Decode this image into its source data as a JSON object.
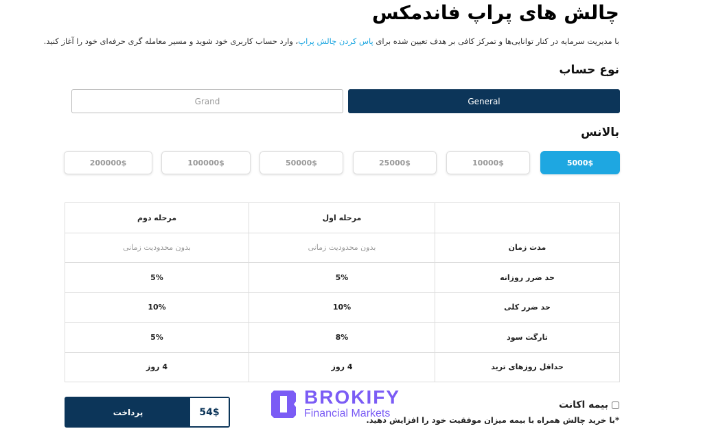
{
  "title": "چالش های پراپ فاندمکس",
  "intro": {
    "before": "با مدیریت سرمایه در کنار توانایی‌ها و تمرکز کافی بر هدف تعیین شده برای ",
    "link": "پاس کردن چالش پراپ",
    "after": "، وارد حساب کاربری خود شوید و مسیر معامله گری حرفه‌ای خود را آغاز کنید."
  },
  "account_type": {
    "label": "نوع حساب",
    "options": [
      "General",
      "Grand"
    ],
    "selected": "General"
  },
  "balance": {
    "label": "بالانس",
    "options": [
      "5000$",
      "10000$",
      "25000$",
      "50000$",
      "100000$",
      "200000$"
    ],
    "selected": "5000$"
  },
  "table": {
    "headers": [
      "",
      "مرحله اول",
      "مرحله دوم"
    ],
    "rows": [
      [
        "مدت زمان",
        "بدون محدودیت زمانی",
        "بدون محدودیت زمانی"
      ],
      [
        "حد ضرر روزانه",
        "5%",
        "5%"
      ],
      [
        "حد ضرر کلی",
        "10%",
        "10%"
      ],
      [
        "تارگت سود",
        "8%",
        "5%"
      ],
      [
        "حداقل روزهای ترید",
        "4 روز",
        "4 روز"
      ]
    ]
  },
  "payment": {
    "label": "پرداخت",
    "price": "54$"
  },
  "insurance": {
    "label": "بیمه اکانت",
    "checked": false,
    "note": "*با خرید چالش همراه با بیمه میزان موفقیت خود را افزایش دهید."
  },
  "watermark": {
    "name": "BROKIFY",
    "tagline": "Financial Markets"
  },
  "colors": {
    "primary": "#0c3559",
    "accent": "#1ea7e1",
    "watermark": "#7b5cf5"
  }
}
